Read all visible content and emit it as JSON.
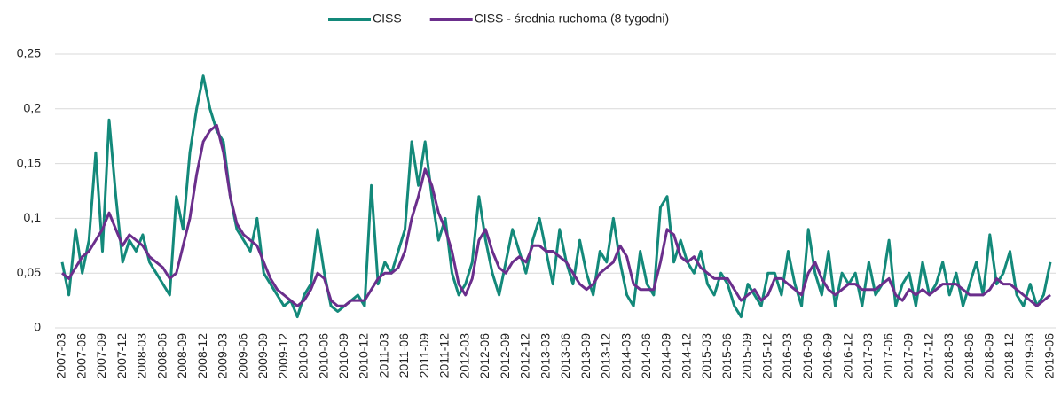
{
  "chart_data": {
    "type": "line",
    "categories": [
      "2007-03",
      null,
      null,
      "2007-06",
      null,
      null,
      "2007-09",
      null,
      null,
      "2007-12",
      null,
      null,
      "2008-03",
      null,
      null,
      "2008-06",
      null,
      null,
      "2008-09",
      null,
      null,
      "2008-12",
      null,
      null,
      "2009-03",
      null,
      null,
      "2009-06",
      null,
      null,
      "2009-09",
      null,
      null,
      "2009-12",
      null,
      null,
      "2010-03",
      null,
      null,
      "2010-06",
      null,
      null,
      "2010-09",
      null,
      null,
      "2010-12",
      null,
      null,
      "2011-03",
      null,
      null,
      "2011-06",
      null,
      null,
      "2011-09",
      null,
      null,
      "2011-12",
      null,
      null,
      "2012-03",
      null,
      null,
      "2012-06",
      null,
      null,
      "2012-09",
      null,
      null,
      "2012-12",
      null,
      null,
      "2013-03",
      null,
      null,
      "2013-06",
      null,
      null,
      "2013-09",
      null,
      null,
      "2013-12",
      null,
      null,
      "2014-03",
      null,
      null,
      "2014-06",
      null,
      null,
      "2014-09",
      null,
      null,
      "2014-12",
      null,
      null,
      "2015-03",
      null,
      null,
      "2015-06",
      null,
      null,
      "2015-09",
      null,
      null,
      "2015-12",
      null,
      null,
      "2016-03",
      null,
      null,
      "2016-06",
      null,
      null,
      "2016-09",
      null,
      null,
      "2016-12",
      null,
      null,
      "2017-03",
      null,
      null,
      "2017-06",
      null,
      null,
      "2017-09",
      null,
      null,
      "2017-12",
      null,
      null,
      "2018-03",
      null,
      null,
      "2018-06",
      null,
      null,
      "2018-09",
      null,
      null,
      "2018-12",
      null,
      null,
      "2019-03",
      null,
      null,
      "2019-06"
    ],
    "series": [
      {
        "name": "CISS",
        "color": "#13897a",
        "values": [
          0.06,
          0.03,
          0.09,
          0.05,
          0.08,
          0.16,
          0.07,
          0.19,
          0.12,
          0.06,
          0.08,
          0.07,
          0.085,
          0.06,
          0.05,
          0.04,
          0.03,
          0.12,
          0.09,
          0.16,
          0.2,
          0.23,
          0.2,
          0.18,
          0.17,
          0.12,
          0.09,
          0.08,
          0.07,
          0.1,
          0.05,
          0.04,
          0.03,
          0.02,
          0.025,
          0.01,
          0.03,
          0.04,
          0.09,
          0.05,
          0.02,
          0.015,
          0.02,
          0.025,
          0.03,
          0.02,
          0.13,
          0.04,
          0.06,
          0.05,
          0.07,
          0.09,
          0.17,
          0.13,
          0.17,
          0.12,
          0.08,
          0.1,
          0.05,
          0.03,
          0.04,
          0.06,
          0.12,
          0.08,
          0.05,
          0.03,
          0.06,
          0.09,
          0.07,
          0.05,
          0.08,
          0.1,
          0.07,
          0.04,
          0.09,
          0.06,
          0.04,
          0.08,
          0.05,
          0.03,
          0.07,
          0.06,
          0.1,
          0.06,
          0.03,
          0.02,
          0.07,
          0.04,
          0.03,
          0.11,
          0.12,
          0.06,
          0.08,
          0.06,
          0.05,
          0.07,
          0.04,
          0.03,
          0.05,
          0.04,
          0.02,
          0.01,
          0.04,
          0.03,
          0.02,
          0.05,
          0.05,
          0.03,
          0.07,
          0.04,
          0.02,
          0.09,
          0.05,
          0.03,
          0.07,
          0.02,
          0.05,
          0.04,
          0.05,
          0.02,
          0.06,
          0.03,
          0.04,
          0.08,
          0.02,
          0.04,
          0.05,
          0.02,
          0.06,
          0.03,
          0.04,
          0.06,
          0.03,
          0.05,
          0.02,
          0.04,
          0.06,
          0.03,
          0.085,
          0.04,
          0.05,
          0.07,
          0.03,
          0.02,
          0.04,
          0.02,
          0.03,
          0.06
        ]
      },
      {
        "name": "CISS - średnia ruchoma (8 tygodni)",
        "color": "#6b2e8c",
        "values": [
          0.05,
          0.045,
          0.055,
          0.065,
          0.07,
          0.08,
          0.09,
          0.105,
          0.09,
          0.075,
          0.085,
          0.08,
          0.075,
          0.065,
          0.06,
          0.055,
          0.045,
          0.05,
          0.075,
          0.1,
          0.14,
          0.17,
          0.18,
          0.185,
          0.16,
          0.12,
          0.095,
          0.085,
          0.08,
          0.075,
          0.06,
          0.045,
          0.035,
          0.03,
          0.025,
          0.02,
          0.025,
          0.035,
          0.05,
          0.045,
          0.025,
          0.02,
          0.02,
          0.025,
          0.025,
          0.025,
          0.035,
          0.045,
          0.05,
          0.05,
          0.055,
          0.07,
          0.1,
          0.12,
          0.145,
          0.13,
          0.105,
          0.09,
          0.07,
          0.04,
          0.03,
          0.045,
          0.08,
          0.09,
          0.07,
          0.055,
          0.05,
          0.06,
          0.065,
          0.06,
          0.075,
          0.075,
          0.07,
          0.07,
          0.065,
          0.06,
          0.05,
          0.04,
          0.035,
          0.04,
          0.05,
          0.055,
          0.06,
          0.075,
          0.065,
          0.04,
          0.035,
          0.035,
          0.035,
          0.06,
          0.09,
          0.085,
          0.065,
          0.06,
          0.065,
          0.055,
          0.05,
          0.045,
          0.045,
          0.045,
          0.035,
          0.025,
          0.03,
          0.035,
          0.025,
          0.03,
          0.045,
          0.045,
          0.04,
          0.035,
          0.03,
          0.05,
          0.06,
          0.045,
          0.035,
          0.03,
          0.035,
          0.04,
          0.04,
          0.035,
          0.035,
          0.035,
          0.04,
          0.045,
          0.03,
          0.025,
          0.035,
          0.03,
          0.035,
          0.03,
          0.035,
          0.04,
          0.04,
          0.04,
          0.035,
          0.03,
          0.03,
          0.03,
          0.035,
          0.045,
          0.04,
          0.04,
          0.035,
          0.03,
          0.025,
          0.02,
          0.025,
          0.03
        ]
      }
    ],
    "ylim": [
      0,
      0.25
    ],
    "yticks": [
      0,
      {
        "value": 0.05,
        "label": "0,05"
      },
      {
        "value": 0.1,
        "label": "0,1"
      },
      {
        "value": 0.15,
        "label": "0,15"
      },
      {
        "value": 0.2,
        "label": "0,2"
      },
      {
        "value": 0.25,
        "label": "0,25"
      }
    ],
    "grid": true,
    "legend": "top"
  }
}
